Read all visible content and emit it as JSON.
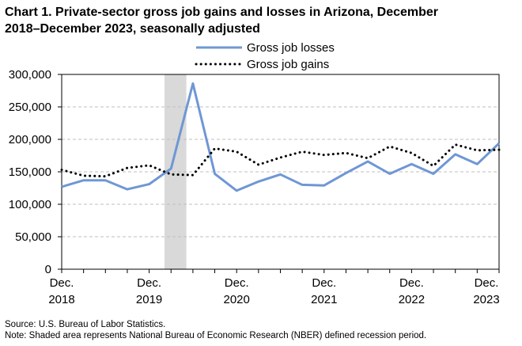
{
  "title_line1": "Chart 1. Private-sector gross job gains and losses in Arizona, December",
  "title_line2": "2018–December 2023, seasonally adjusted",
  "source": "Source: U.S. Bureau of Labor Statistics.",
  "note": "Note: Shaded area represents National Bureau of Economic Research (NBER) defined  recession period.",
  "chart_data": {
    "type": "line",
    "ylim": [
      0,
      300000
    ],
    "yticks": [
      0,
      50000,
      100000,
      150000,
      200000,
      250000,
      300000
    ],
    "ytick_labels": [
      "0",
      "50,000",
      "100,000",
      "150,000",
      "200,000",
      "250,000",
      "300,000"
    ],
    "grid": true,
    "legend_position": "top",
    "x_tick_labels": [
      {
        "index": 0,
        "line1": "Dec.",
        "line2": "2018"
      },
      {
        "index": 4,
        "line1": "Dec.",
        "line2": "2019"
      },
      {
        "index": 8,
        "line1": "Dec.",
        "line2": "2020"
      },
      {
        "index": 12,
        "line1": "Dec.",
        "line2": "2021"
      },
      {
        "index": 16,
        "line1": "Dec.",
        "line2": "2022"
      },
      {
        "index": 20,
        "line1": "Dec.",
        "line2": "2023"
      }
    ],
    "recession_shading": [
      4.7,
      5.7
    ],
    "series": [
      {
        "name": "Gross job losses",
        "style": "solid",
        "color": "#6f97d4",
        "values": [
          127000,
          137000,
          137000,
          123000,
          131000,
          155000,
          286000,
          147000,
          121000,
          135000,
          146000,
          130000,
          129000,
          148000,
          166000,
          147000,
          162000,
          147000,
          177000,
          162000,
          194000
        ]
      },
      {
        "name": "Gross job gains",
        "style": "dotted",
        "color": "#000000",
        "values": [
          153000,
          144000,
          143000,
          156000,
          160000,
          146000,
          145000,
          186000,
          181000,
          161000,
          172000,
          181000,
          176000,
          179000,
          171000,
          189000,
          179000,
          159000,
          192000,
          183000,
          184000
        ]
      }
    ]
  }
}
